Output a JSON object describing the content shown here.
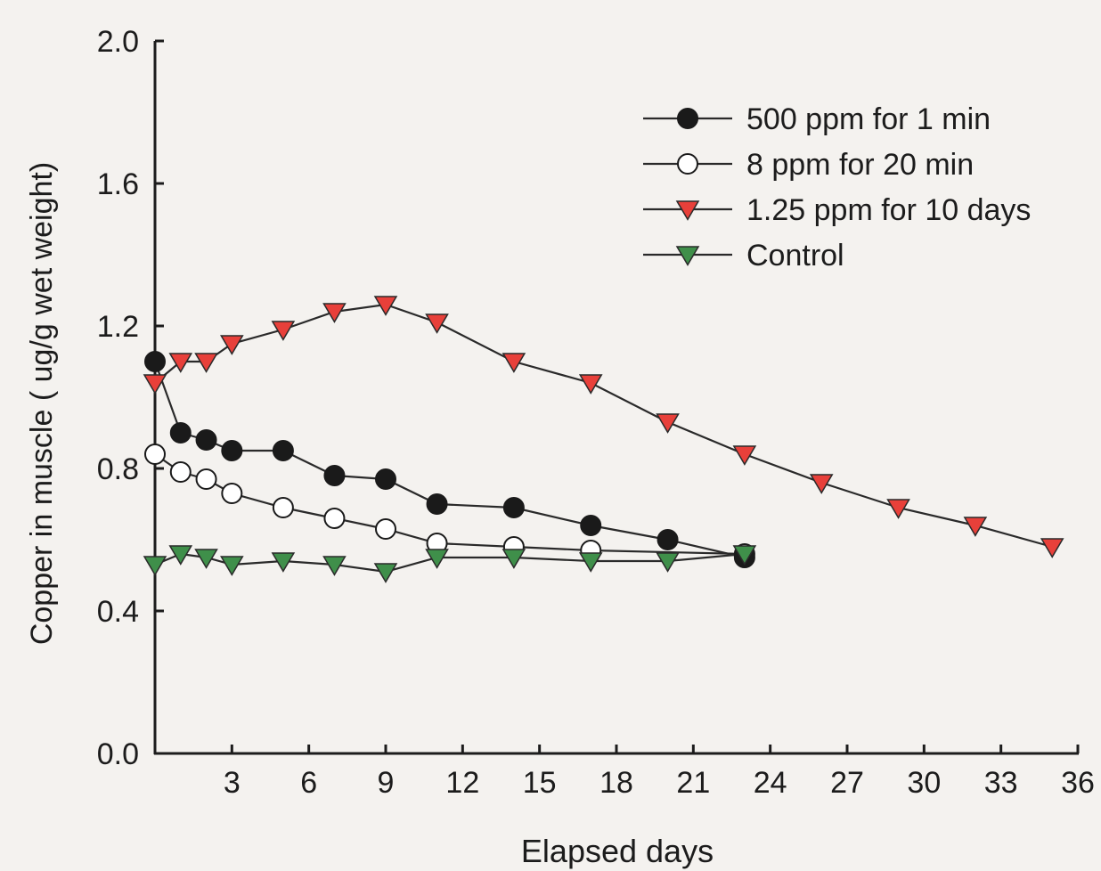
{
  "chart_data": {
    "type": "line",
    "title": "",
    "xlabel": "Elapsed days",
    "ylabel": "Copper in muscle ( ug/g wet weight)",
    "xlim": [
      0,
      36
    ],
    "ylim": [
      0,
      2.0
    ],
    "x_ticks": [
      3,
      6,
      9,
      12,
      15,
      18,
      21,
      24,
      27,
      30,
      33,
      36
    ],
    "x_tick_labels": [
      "3",
      "6",
      "9",
      "12",
      "15",
      "18",
      "21",
      "24",
      "27",
      "30",
      "33",
      "36"
    ],
    "y_ticks": [
      0,
      0.4,
      0.8,
      1.2,
      1.6,
      2.0
    ],
    "y_tick_labels": [
      "0.0",
      "0.4",
      "0.8",
      "1.2",
      "1.6",
      "2.0"
    ],
    "grid": false,
    "legend_position": "top-right",
    "series": [
      {
        "name": "500 ppm for 1 min",
        "marker": "circle",
        "marker_fill": "#1a1a1a",
        "line_color": "#2a2a2a",
        "points": [
          [
            0,
            1.1
          ],
          [
            1,
            0.9
          ],
          [
            2,
            0.88
          ],
          [
            3,
            0.85
          ],
          [
            5,
            0.85
          ],
          [
            7,
            0.78
          ],
          [
            9,
            0.77
          ],
          [
            11,
            0.7
          ],
          [
            14,
            0.69
          ],
          [
            17,
            0.64
          ],
          [
            20,
            0.6
          ],
          [
            23,
            0.55
          ]
        ]
      },
      {
        "name": "8 ppm for 20 min",
        "marker": "circle",
        "marker_fill": "#ffffff",
        "line_color": "#2a2a2a",
        "points": [
          [
            0,
            0.84
          ],
          [
            1,
            0.79
          ],
          [
            2,
            0.77
          ],
          [
            3,
            0.73
          ],
          [
            5,
            0.69
          ],
          [
            7,
            0.66
          ],
          [
            9,
            0.63
          ],
          [
            11,
            0.59
          ],
          [
            14,
            0.58
          ],
          [
            17,
            0.57
          ],
          [
            23,
            0.56
          ]
        ]
      },
      {
        "name": "1.25 ppm for 10 days",
        "marker": "triangle-down",
        "marker_fill": "#e8403a",
        "line_color": "#2a2a2a",
        "points": [
          [
            0,
            1.04
          ],
          [
            1,
            1.1
          ],
          [
            2,
            1.1
          ],
          [
            3,
            1.15
          ],
          [
            5,
            1.19
          ],
          [
            7,
            1.24
          ],
          [
            9,
            1.26
          ],
          [
            11,
            1.21
          ],
          [
            14,
            1.1
          ],
          [
            17,
            1.04
          ],
          [
            20,
            0.93
          ],
          [
            23,
            0.84
          ],
          [
            26,
            0.76
          ],
          [
            29,
            0.69
          ],
          [
            32,
            0.64
          ],
          [
            35,
            0.58
          ]
        ]
      },
      {
        "name": "Control",
        "marker": "triangle-down",
        "marker_fill": "#3f8f4a",
        "line_color": "#2a2a2a",
        "points": [
          [
            0,
            0.53
          ],
          [
            1,
            0.56
          ],
          [
            2,
            0.55
          ],
          [
            3,
            0.53
          ],
          [
            5,
            0.54
          ],
          [
            7,
            0.53
          ],
          [
            9,
            0.51
          ],
          [
            11,
            0.55
          ],
          [
            14,
            0.55
          ],
          [
            17,
            0.54
          ],
          [
            20,
            0.54
          ],
          [
            23,
            0.56
          ]
        ]
      }
    ]
  }
}
